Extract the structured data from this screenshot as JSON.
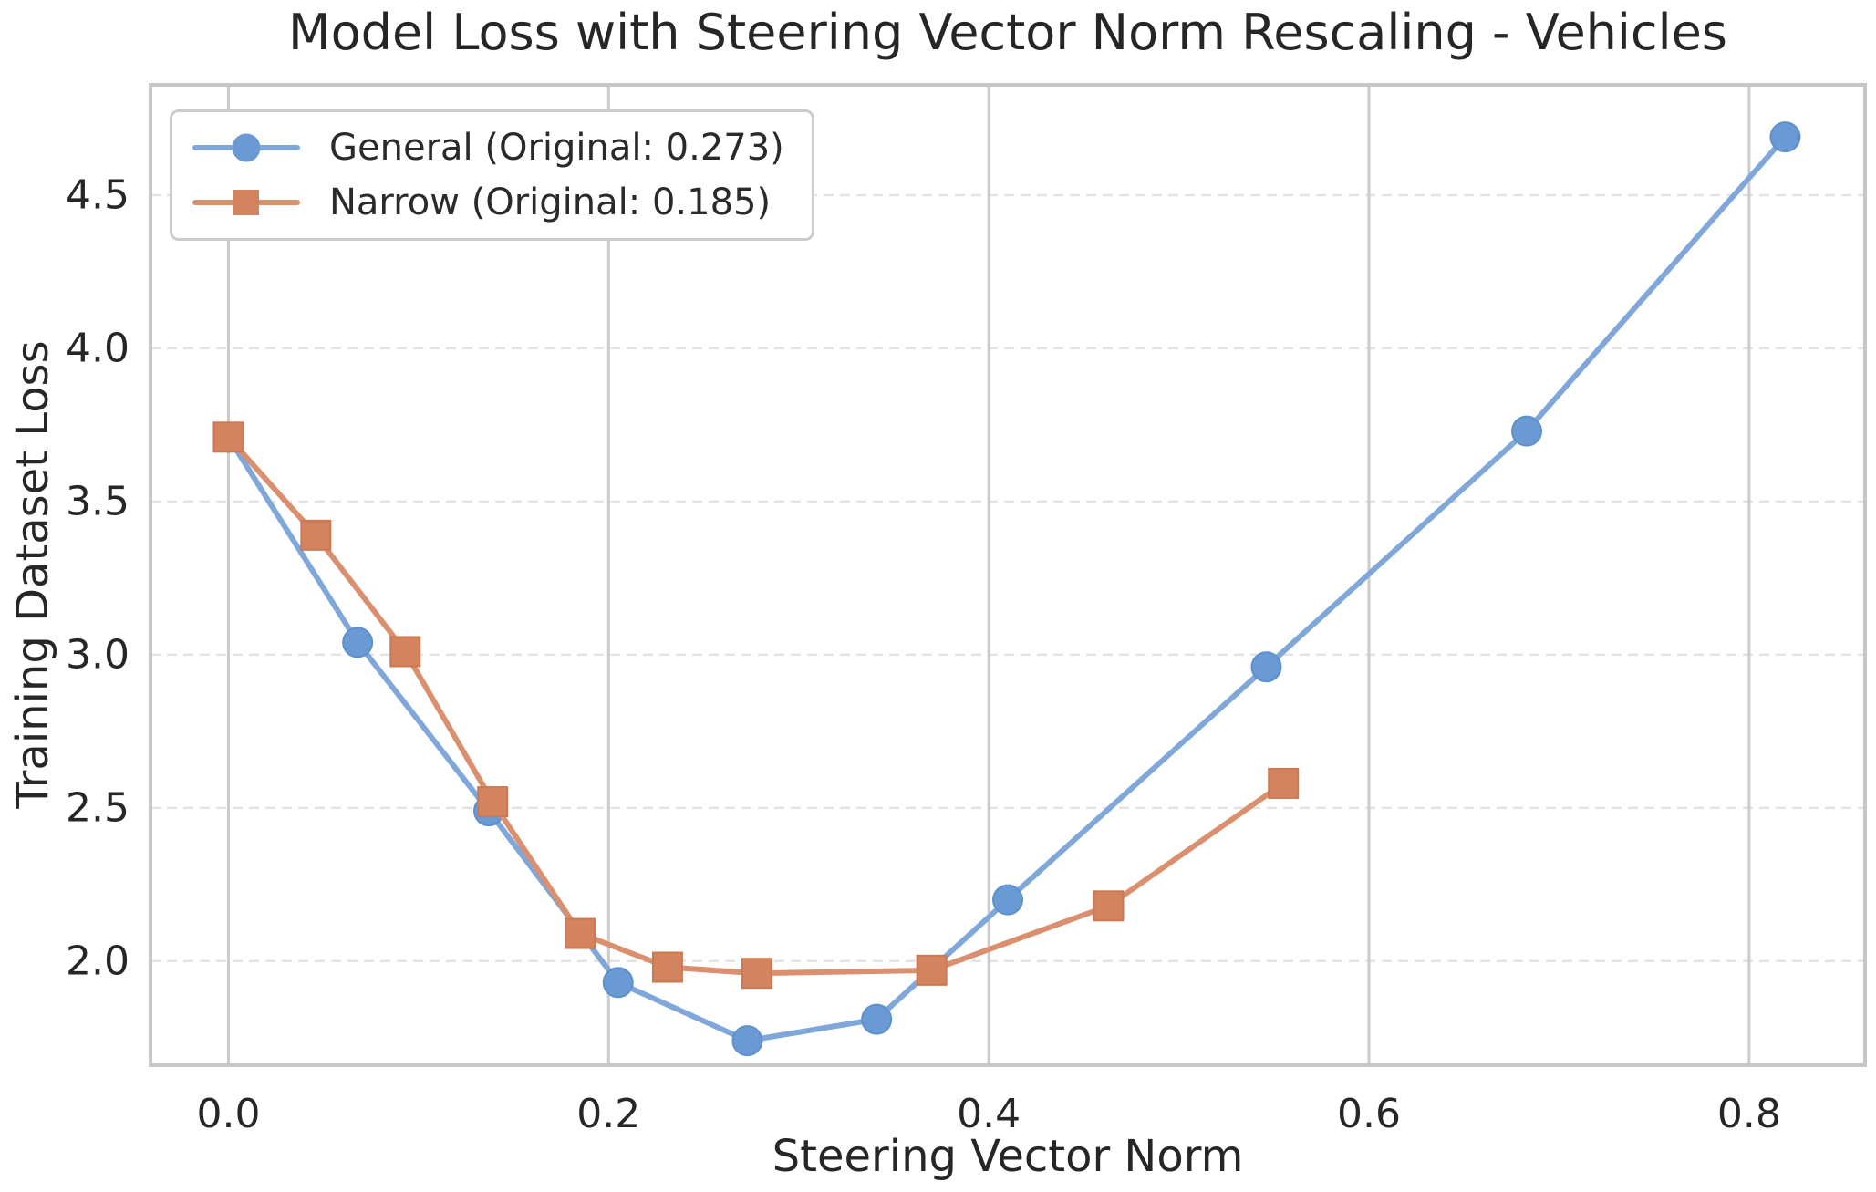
{
  "title": "Model Loss with Steering Vector Norm Rescaling - Vehicles",
  "chart_data": {
    "type": "line",
    "title": "Model Loss with Steering Vector Norm Rescaling - Vehicles",
    "xlabel": "Steering Vector Norm",
    "ylabel": "Training Dataset Loss",
    "xlim": [
      -0.041,
      0.861
    ],
    "ylim": [
      1.66,
      4.86
    ],
    "xticks": [
      0.0,
      0.2,
      0.4,
      0.6,
      0.8
    ],
    "xtick_labels": [
      "0.0",
      "0.2",
      "0.4",
      "0.6",
      "0.8"
    ],
    "yticks": [
      2.0,
      2.5,
      3.0,
      3.5,
      4.0,
      4.5
    ],
    "ytick_labels": [
      "2.0",
      "2.5",
      "3.0",
      "3.5",
      "4.0",
      "4.5"
    ],
    "grid": {
      "x_style": "solid",
      "y_style": "dashed"
    },
    "legend_position": "upper-left",
    "series": [
      {
        "name": "General (Original: 0.273)",
        "marker": "circle",
        "line_color": "#7FA7DA",
        "marker_color": "#699AD3",
        "marker_edge_color": "#5E91CC",
        "x": [
          0.0,
          0.068,
          0.137,
          0.205,
          0.273,
          0.341,
          0.41,
          0.546,
          0.683,
          0.819
        ],
        "y": [
          3.71,
          3.04,
          2.49,
          1.93,
          1.74,
          1.81,
          2.2,
          2.96,
          3.73,
          4.69
        ]
      },
      {
        "name": "Narrow (Original: 0.185)",
        "marker": "square",
        "line_color": "#DA8F6E",
        "marker_color": "#D4835F",
        "marker_edge_color": "#CC7850",
        "x": [
          0.0,
          0.046,
          0.093,
          0.139,
          0.185,
          0.231,
          0.278,
          0.37,
          0.463,
          0.555
        ],
        "y": [
          3.71,
          3.39,
          3.01,
          2.52,
          2.09,
          1.98,
          1.96,
          1.97,
          2.18,
          2.58
        ]
      }
    ]
  },
  "colors": {
    "background": "#ffffff",
    "spine": "#c6c6c6",
    "grid_x": "#cbcbcb",
    "grid_y": "#e3e3e3",
    "text": "#262626",
    "legend_border": "#cccccc"
  }
}
